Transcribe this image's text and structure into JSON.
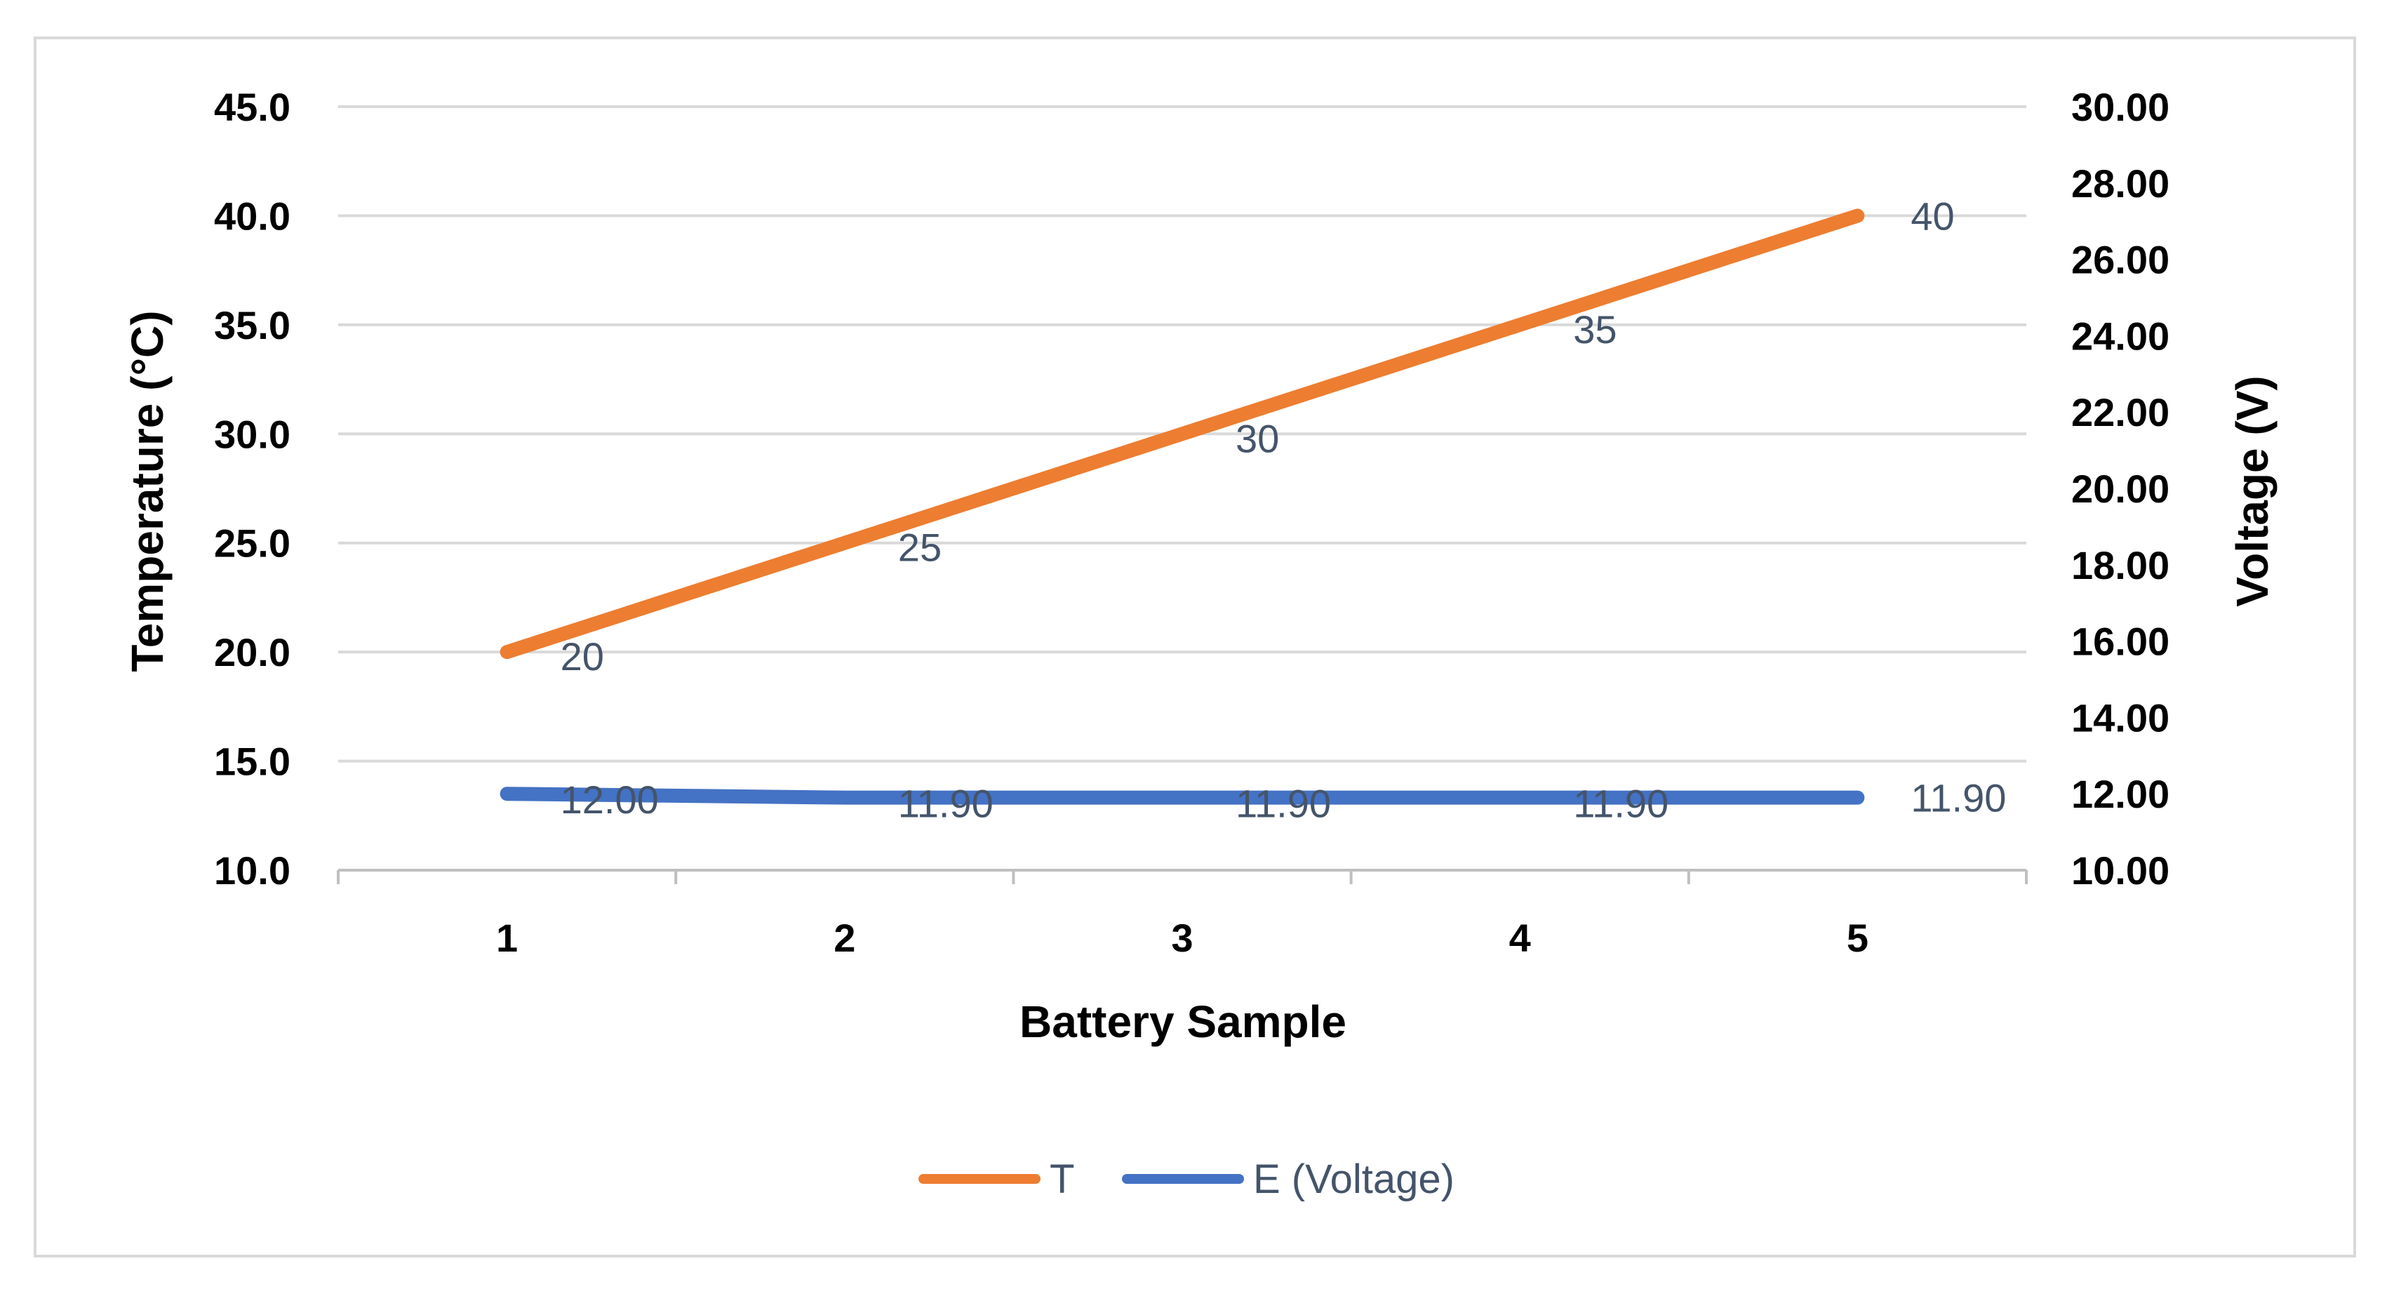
{
  "chart_data": {
    "type": "line",
    "title": "",
    "xlabel": "Battery Sample",
    "ylabel": "Temperature (°C)",
    "y2label": "Voltage (V)",
    "categories": [
      "1",
      "2",
      "3",
      "4",
      "5"
    ],
    "ylim": [
      10,
      45
    ],
    "y2lim": [
      10,
      30
    ],
    "y_ticks": [
      "10.0",
      "15.0",
      "20.0",
      "25.0",
      "30.0",
      "35.0",
      "40.0",
      "45.0"
    ],
    "y2_ticks": [
      "10.00",
      "12.00",
      "14.00",
      "16.00",
      "18.00",
      "20.00",
      "22.00",
      "24.00",
      "26.00",
      "28.00",
      "30.00"
    ],
    "grid": true,
    "legend_position": "bottom",
    "series": [
      {
        "name": "T",
        "axis": "left",
        "values": [
          20,
          25,
          30,
          35,
          40
        ],
        "labels": [
          "20",
          "25",
          "30",
          "35",
          "40"
        ],
        "color": "#ed7d31"
      },
      {
        "name": "E (Voltage)",
        "axis": "right",
        "values": [
          12.0,
          11.9,
          11.9,
          11.9,
          11.9
        ],
        "labels": [
          "12.00",
          "11.90",
          "11.90",
          "11.90",
          "11.90"
        ],
        "color": "#4472c4"
      }
    ]
  }
}
